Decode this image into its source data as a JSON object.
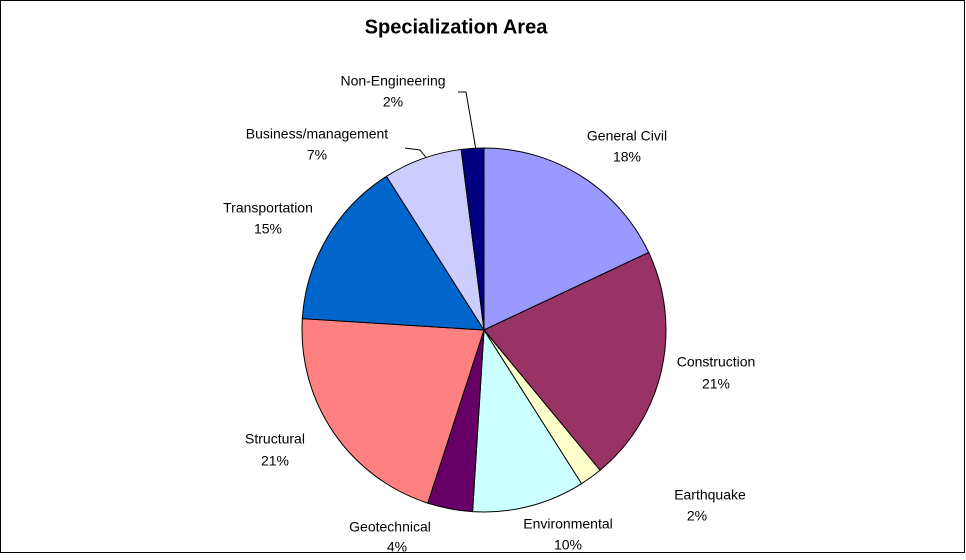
{
  "chart_data": {
    "type": "pie",
    "title": "Specialization Area",
    "categories": [
      "General Civil",
      "Construction",
      "Earthquake",
      "Environmental",
      "Geotechnical",
      "Structural",
      "Transportation",
      "Business/management",
      "Non-Engineering"
    ],
    "values": [
      18,
      21,
      2,
      10,
      4,
      21,
      15,
      7,
      2
    ],
    "value_labels": [
      "18%",
      "21%",
      "2%",
      "10%",
      "4%",
      "21%",
      "15%",
      "7%",
      "2%"
    ],
    "colors": [
      "#9999ff",
      "#993366",
      "#ffffcc",
      "#ccffff",
      "#660066",
      "#ff8080",
      "#0066cc",
      "#ccccff",
      "#000080"
    ]
  }
}
